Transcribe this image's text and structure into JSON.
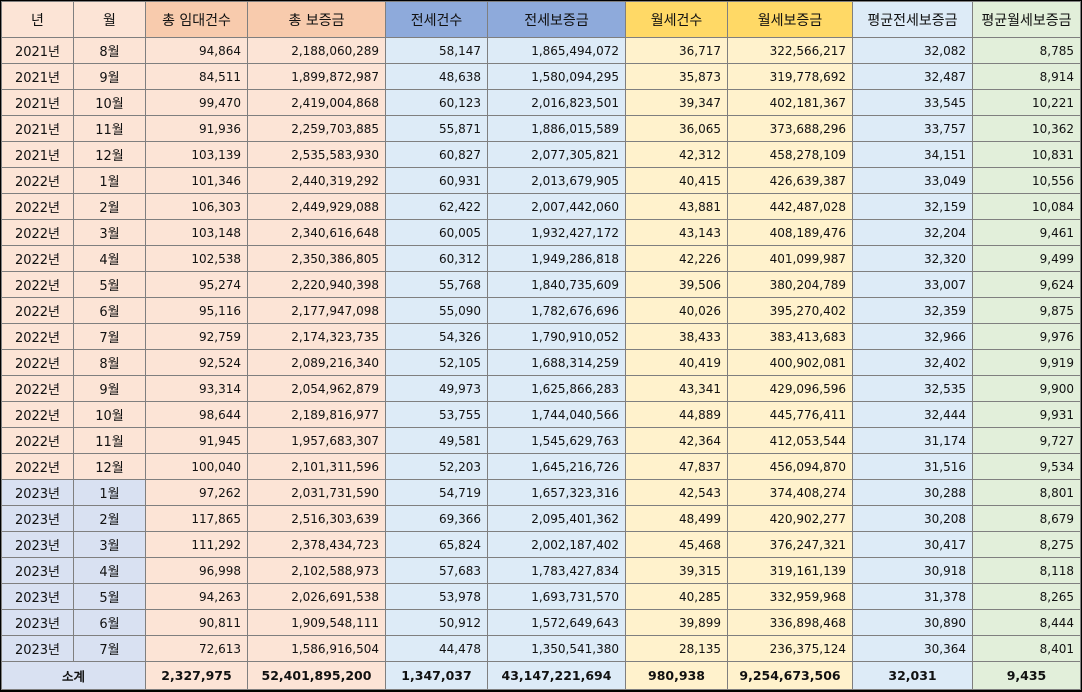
{
  "headers": [
    "년",
    "월",
    "총 임대건수",
    "총 보증금",
    "전세건수",
    "전세보증금",
    "월세건수",
    "월세보증금",
    "평균전세보증금",
    "평균월세보증금"
  ],
  "rows": [
    [
      "2021년",
      "8월",
      "94,864",
      "2,188,060,289",
      "58,147",
      "1,865,494,072",
      "36,717",
      "322,566,217",
      "32,082",
      "8,785"
    ],
    [
      "2021년",
      "9월",
      "84,511",
      "1,899,872,987",
      "48,638",
      "1,580,094,295",
      "35,873",
      "319,778,692",
      "32,487",
      "8,914"
    ],
    [
      "2021년",
      "10월",
      "99,470",
      "2,419,004,868",
      "60,123",
      "2,016,823,501",
      "39,347",
      "402,181,367",
      "33,545",
      "10,221"
    ],
    [
      "2021년",
      "11월",
      "91,936",
      "2,259,703,885",
      "55,871",
      "1,886,015,589",
      "36,065",
      "373,688,296",
      "33,757",
      "10,362"
    ],
    [
      "2021년",
      "12월",
      "103,139",
      "2,535,583,930",
      "60,827",
      "2,077,305,821",
      "42,312",
      "458,278,109",
      "34,151",
      "10,831"
    ],
    [
      "2022년",
      "1월",
      "101,346",
      "2,440,319,292",
      "60,931",
      "2,013,679,905",
      "40,415",
      "426,639,387",
      "33,049",
      "10,556"
    ],
    [
      "2022년",
      "2월",
      "106,303",
      "2,449,929,088",
      "62,422",
      "2,007,442,060",
      "43,881",
      "442,487,028",
      "32,159",
      "10,084"
    ],
    [
      "2022년",
      "3월",
      "103,148",
      "2,340,616,648",
      "60,005",
      "1,932,427,172",
      "43,143",
      "408,189,476",
      "32,204",
      "9,461"
    ],
    [
      "2022년",
      "4월",
      "102,538",
      "2,350,386,805",
      "60,312",
      "1,949,286,818",
      "42,226",
      "401,099,987",
      "32,320",
      "9,499"
    ],
    [
      "2022년",
      "5월",
      "95,274",
      "2,220,940,398",
      "55,768",
      "1,840,735,609",
      "39,506",
      "380,204,789",
      "33,007",
      "9,624"
    ],
    [
      "2022년",
      "6월",
      "95,116",
      "2,177,947,098",
      "55,090",
      "1,782,676,696",
      "40,026",
      "395,270,402",
      "32,359",
      "9,875"
    ],
    [
      "2022년",
      "7월",
      "92,759",
      "2,174,323,735",
      "54,326",
      "1,790,910,052",
      "38,433",
      "383,413,683",
      "32,966",
      "9,976"
    ],
    [
      "2022년",
      "8월",
      "92,524",
      "2,089,216,340",
      "52,105",
      "1,688,314,259",
      "40,419",
      "400,902,081",
      "32,402",
      "9,919"
    ],
    [
      "2022년",
      "9월",
      "93,314",
      "2,054,962,879",
      "49,973",
      "1,625,866,283",
      "43,341",
      "429,096,596",
      "32,535",
      "9,900"
    ],
    [
      "2022년",
      "10월",
      "98,644",
      "2,189,816,977",
      "53,755",
      "1,744,040,566",
      "44,889",
      "445,776,411",
      "32,444",
      "9,931"
    ],
    [
      "2022년",
      "11월",
      "91,945",
      "1,957,683,307",
      "49,581",
      "1,545,629,763",
      "42,364",
      "412,053,544",
      "31,174",
      "9,727"
    ],
    [
      "2022년",
      "12월",
      "100,040",
      "2,101,311,596",
      "52,203",
      "1,645,216,726",
      "47,837",
      "456,094,870",
      "31,516",
      "9,534"
    ],
    [
      "2023년",
      "1월",
      "97,262",
      "2,031,731,590",
      "54,719",
      "1,657,323,316",
      "42,543",
      "374,408,274",
      "30,288",
      "8,801"
    ],
    [
      "2023년",
      "2월",
      "117,865",
      "2,516,303,639",
      "69,366",
      "2,095,401,362",
      "48,499",
      "420,902,277",
      "30,208",
      "8,679"
    ],
    [
      "2023년",
      "3월",
      "111,292",
      "2,378,434,723",
      "65,824",
      "2,002,187,402",
      "45,468",
      "376,247,321",
      "30,417",
      "8,275"
    ],
    [
      "2023년",
      "4월",
      "96,998",
      "2,102,588,973",
      "57,683",
      "1,783,427,834",
      "39,315",
      "319,161,139",
      "30,918",
      "8,118"
    ],
    [
      "2023년",
      "5월",
      "94,263",
      "2,026,691,538",
      "53,978",
      "1,693,731,570",
      "40,285",
      "332,959,968",
      "31,378",
      "8,265"
    ],
    [
      "2023년",
      "6월",
      "90,811",
      "1,909,548,111",
      "50,912",
      "1,572,649,643",
      "39,899",
      "336,898,468",
      "30,890",
      "8,444"
    ],
    [
      "2023년",
      "7월",
      "72,613",
      "1,586,916,504",
      "44,478",
      "1,350,541,380",
      "28,135",
      "236,375,124",
      "30,364",
      "8,401"
    ]
  ],
  "total": {
    "label": "소계",
    "values": [
      "2,327,975",
      "52,401,895,200",
      "1,347,037",
      "43,147,221,694",
      "980,938",
      "9,254,673,506",
      "32,031",
      "9,435"
    ]
  },
  "colors": {
    "header_total": "#f8cbad",
    "header_jeonse": "#8eaadb",
    "header_wolse": "#ffd966",
    "cell_total": "#fce4d6",
    "cell_jeonse": "#ddebf7",
    "cell_wolse": "#fff2cc",
    "cell_avg_wolse": "#e2efda",
    "cell_2023": "#d9e1f2"
  }
}
